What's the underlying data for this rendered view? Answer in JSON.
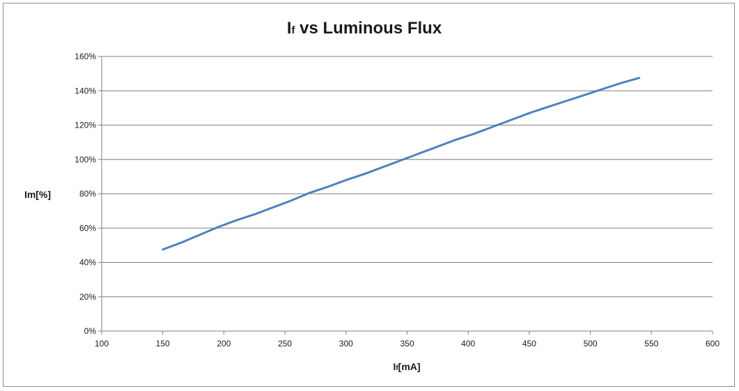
{
  "chart_data": {
    "type": "line",
    "title_main": "I",
    "title_sub": "f",
    "title_rest": " vs Luminous Flux",
    "xlabel_main": "I",
    "xlabel_sub": "f",
    "xlabel_rest": "[mA]",
    "ylabel": "Im[%]",
    "xlim": [
      100,
      600
    ],
    "ylim": [
      0,
      160
    ],
    "x_ticks": [
      "100",
      "150",
      "200",
      "250",
      "300",
      "350",
      "400",
      "450",
      "500",
      "550",
      "600"
    ],
    "y_ticks": [
      "0%",
      "20%",
      "40%",
      "60%",
      "80%",
      "100%",
      "120%",
      "140%",
      "160%"
    ],
    "grid": true,
    "series": [
      {
        "color": "#4f81bd",
        "x": [
          150,
          165,
          180,
          195,
          210,
          225,
          240,
          255,
          270,
          285,
          300,
          315,
          330,
          345,
          360,
          375,
          390,
          405,
          420,
          435,
          450,
          465,
          480,
          495,
          510,
          525,
          540
        ],
        "y": [
          47.5,
          51.5,
          56,
          60.5,
          64.5,
          68,
          72,
          76,
          80.5,
          84,
          88,
          91.5,
          95.5,
          99.5,
          103.5,
          107.5,
          111.5,
          115,
          119,
          123,
          127,
          130.5,
          134,
          137.5,
          141,
          144.5,
          147.5
        ]
      }
    ]
  }
}
